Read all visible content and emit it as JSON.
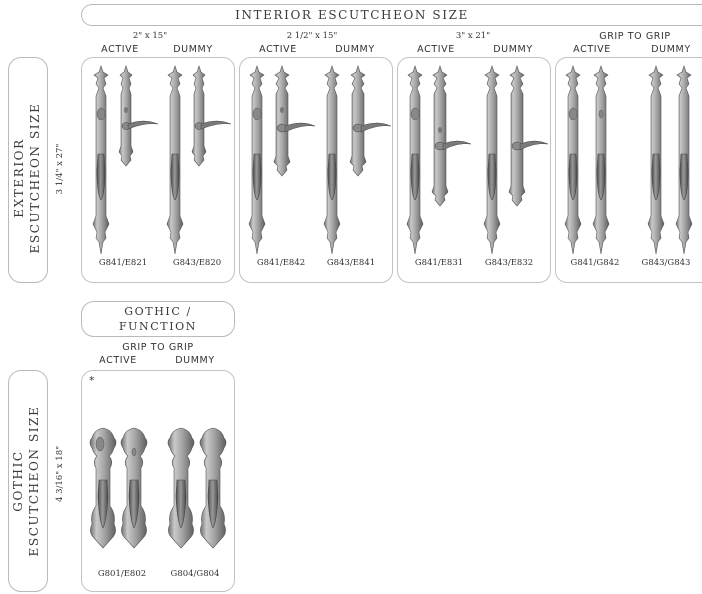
{
  "interior_title": "INTERIOR ESCUTCHEON SIZE",
  "exterior_title_line1": "EXTERIOR",
  "exterior_title_line2": "ESCUTCHEON SIZE",
  "exterior_size": "3 1/4\" x 27\"",
  "gothic_title_line1": "GOTHIC",
  "gothic_title_line2": "ESCUTCHEON SIZE",
  "gothic_size": "4 3/16\" x 18\"",
  "gothic_function_line1": "GOTHIC /",
  "gothic_function_line2": "FUNCTION",
  "groups": [
    {
      "size": "2\" x 15\"",
      "active": "ACTIVE",
      "dummy": "DUMMY",
      "model_active": "G841/E821",
      "model_dummy": "G843/E820"
    },
    {
      "size": "2 1/2\" x 15\"",
      "active": "ACTIVE",
      "dummy": "DUMMY",
      "model_active": "G841/E842",
      "model_dummy": "G843/E841"
    },
    {
      "size": "3\" x 21\"",
      "active": "ACTIVE",
      "dummy": "DUMMY",
      "model_active": "G841/E831",
      "model_dummy": "G843/E832"
    },
    {
      "size": "GRIP TO GRIP",
      "active": "ACTIVE",
      "dummy": "DUMMY",
      "model_active": "G841/G842",
      "model_dummy": "G843/G843"
    }
  ],
  "gothic_group": {
    "size": "GRIP TO GRIP",
    "active": "ACTIVE",
    "dummy": "DUMMY",
    "asterisk": "*",
    "model_active": "G801/E802",
    "model_dummy": "G804/G804"
  }
}
